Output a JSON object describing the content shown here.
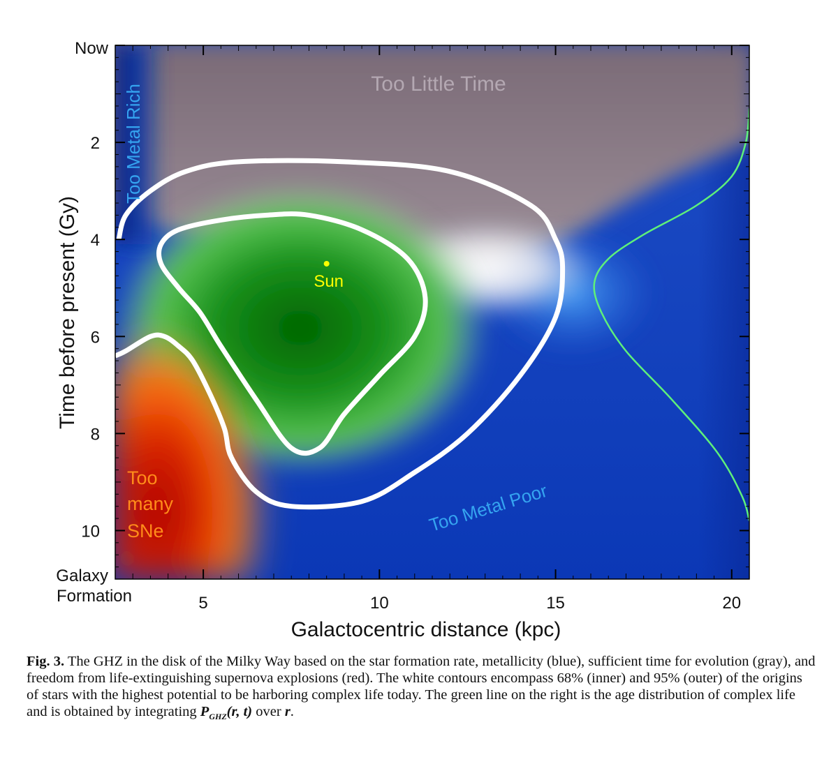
{
  "chart_data": {
    "type": "heatmap",
    "xlabel": "Galactocentric distance (kpc)",
    "ylabel": "Time before present (Gy)",
    "xlim": [
      2.5,
      20.5
    ],
    "ylim": [
      11.0,
      0.0
    ],
    "xticks": [
      5,
      10,
      15,
      20
    ],
    "xtick_labels": [
      "5",
      "10",
      "15",
      "20"
    ],
    "yticks": [
      2,
      4,
      6,
      8,
      10
    ],
    "ytick_labels": [
      "2",
      "4",
      "6",
      "8",
      "10"
    ],
    "y_top_label": "Now",
    "y_bottom_label_line1": "Galaxy",
    "y_bottom_label_line2": "Formation",
    "region_labels": {
      "too_little_time": "Too Little Time",
      "too_metal_rich": "Too Metal Rich",
      "too_metal_poor": "Too Metal Poor",
      "too_many_sne_1": "Too",
      "too_many_sne_2": "many",
      "too_many_sne_3": "SNe"
    },
    "sun": {
      "label": "Sun",
      "x": 8.5,
      "y": 4.5
    },
    "contour_95": [
      [
        2.6,
        4.0
      ],
      [
        2.8,
        3.5
      ],
      [
        3.5,
        3.0
      ],
      [
        4.5,
        2.6
      ],
      [
        6.0,
        2.4
      ],
      [
        9.0,
        2.4
      ],
      [
        12.0,
        2.6
      ],
      [
        14.3,
        3.3
      ],
      [
        15.0,
        4.0
      ],
      [
        15.2,
        4.6
      ],
      [
        15.0,
        5.6
      ],
      [
        14.0,
        6.8
      ],
      [
        12.5,
        8.0
      ],
      [
        11.0,
        8.8
      ],
      [
        9.5,
        9.4
      ],
      [
        7.5,
        9.5
      ],
      [
        6.5,
        9.2
      ],
      [
        5.8,
        8.5
      ],
      [
        5.6,
        7.9
      ],
      [
        5.2,
        7.2
      ],
      [
        4.7,
        6.5
      ],
      [
        4.3,
        6.2
      ],
      [
        3.9,
        6.0
      ],
      [
        3.5,
        6.0
      ],
      [
        2.8,
        6.3
      ],
      [
        2.5,
        6.4
      ]
    ],
    "contour_68": [
      [
        4.3,
        3.8
      ],
      [
        5.5,
        3.6
      ],
      [
        6.8,
        3.5
      ],
      [
        8.0,
        3.5
      ],
      [
        9.5,
        3.8
      ],
      [
        10.8,
        4.4
      ],
      [
        11.3,
        5.2
      ],
      [
        11.0,
        6.0
      ],
      [
        10.0,
        6.8
      ],
      [
        9.0,
        7.6
      ],
      [
        8.3,
        8.3
      ],
      [
        7.5,
        8.3
      ],
      [
        6.5,
        7.3
      ],
      [
        5.5,
        6.2
      ],
      [
        4.9,
        5.5
      ],
      [
        4.3,
        5.0
      ],
      [
        3.8,
        4.5
      ],
      [
        3.8,
        4.1
      ]
    ],
    "age_distribution_line": [
      [
        20.5,
        1.3
      ],
      [
        20.4,
        2.0
      ],
      [
        20.0,
        2.7
      ],
      [
        19.0,
        3.3
      ],
      [
        17.5,
        3.9
      ],
      [
        16.5,
        4.4
      ],
      [
        16.1,
        4.9
      ],
      [
        16.3,
        5.5
      ],
      [
        17.0,
        6.3
      ],
      [
        18.3,
        7.3
      ],
      [
        19.6,
        8.4
      ],
      [
        20.3,
        9.3
      ],
      [
        20.5,
        9.8
      ]
    ],
    "colors": {
      "metallicity": "#1a48c8",
      "time_gray": "#7e6c78",
      "supernova_red": "#d01010",
      "ghz_green": "#0e8a18",
      "contour": "#ffffff",
      "age_line": "#5ef07a",
      "sun": "#ffff00",
      "label_blue": "#35a4f0",
      "label_gray": "#b4a8b2",
      "label_orange": "#ff8c1a"
    }
  },
  "caption": {
    "fig_label": "Fig. 3.",
    "text_before_math": " The GHZ in the disk of the Milky Way based on the star formation rate,  metallicity (blue), sufficient time for evolution (gray), and freedom from life-extinguishing supernova explosions (red).  The white contours encompass 68% (inner) and 95% (outer) of the origins of stars with the highest potential to be harboring complex life today.  The green line on the right is the age distribution of complex life and is obtained by integrating ",
    "math_p": "P",
    "math_sub": "GHZ",
    "math_args": "(r, t)",
    "text_between": " over ",
    "math_r": "r",
    "text_end": "."
  }
}
